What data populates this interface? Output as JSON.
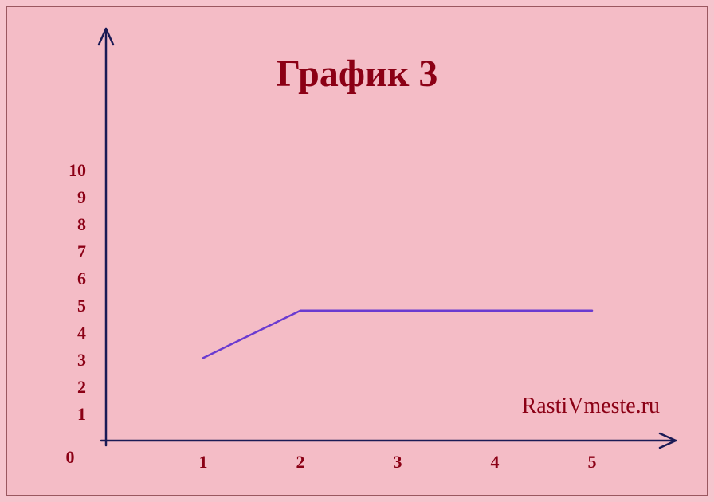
{
  "chart": {
    "type": "line",
    "title": "График 3",
    "title_fontsize": 48,
    "title_weight": "bold",
    "title_color": "#8b0015",
    "watermark": "RastiVmeste.ru",
    "watermark_fontsize": 28,
    "watermark_color": "#8b0015",
    "page_background": "#f6c5ce",
    "plot_background": "#f4bcc6",
    "border_color": "#9a5860",
    "border_width": 1,
    "axis_color": "#1a1a55",
    "axis_width": 2.5,
    "tick_label_color": "#8b0015",
    "tick_label_fontsize": 22,
    "tick_label_weight": "bold",
    "line_color": "#6a3bd0",
    "line_width": 2.5,
    "x_ticks": [
      1,
      2,
      3,
      4,
      5
    ],
    "y_ticks": [
      0,
      1,
      2,
      3,
      4,
      5,
      6,
      7,
      8,
      9,
      10
    ],
    "origin_label": "0",
    "xlim": [
      0,
      6
    ],
    "ylim": [
      0,
      11
    ],
    "data": {
      "x": [
        1,
        2,
        5
      ],
      "y": [
        3.05,
        4.8,
        4.8
      ]
    },
    "arrowheads": true
  }
}
